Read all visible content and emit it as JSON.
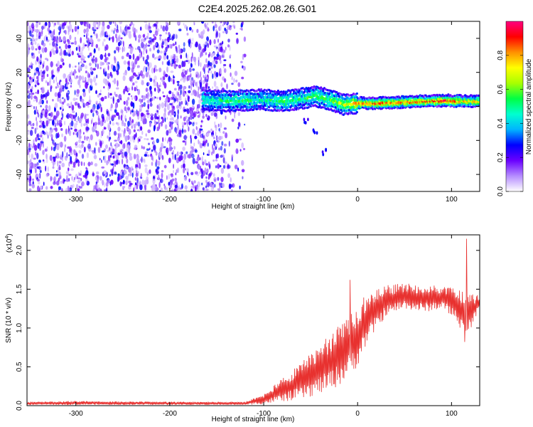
{
  "title": "C2E4.2025.262.08.26.G01",
  "chart_data": [
    {
      "type": "heatmap",
      "title": "",
      "xlabel": "Height of straight line (km)",
      "ylabel": "Frequency (Hz)",
      "xlim": [
        -352,
        130
      ],
      "ylim": [
        -50,
        50
      ],
      "xticks": [
        -300,
        -200,
        -100,
        0,
        100
      ],
      "yticks": [
        -40,
        -20,
        0,
        20,
        40
      ],
      "xtick_labels": [
        "-300",
        "-200",
        "-100",
        "0",
        "100"
      ],
      "ytick_labels": [
        "-40",
        "-20",
        "0",
        "20",
        "40"
      ],
      "colorbar": {
        "label": "Normalized spectral amplitude",
        "range": [
          0,
          1
        ],
        "ticks": [
          "0.0",
          "0.2",
          "0.4",
          "0.6",
          "0.8"
        ],
        "colors": [
          "#ffffff",
          "#b58cff",
          "#6a00ff",
          "#0000ff",
          "#00b4ff",
          "#00ffd0",
          "#00ff44",
          "#a8ff00",
          "#ffff00",
          "#ff9000",
          "#ff0000",
          "#ff0080"
        ]
      },
      "noise_region_x": [
        -352,
        -140
      ],
      "signal_ridge": [
        {
          "x": -165,
          "y": 4,
          "amp": 0.45
        },
        {
          "x": -140,
          "y": 3,
          "amp": 0.5
        },
        {
          "x": -120,
          "y": 3.5,
          "amp": 0.5
        },
        {
          "x": -100,
          "y": 4,
          "amp": 0.45
        },
        {
          "x": -80,
          "y": 3,
          "amp": 0.55
        },
        {
          "x": -60,
          "y": 4.5,
          "amp": 0.5
        },
        {
          "x": -45,
          "y": 6,
          "amp": 0.55
        },
        {
          "x": -30,
          "y": 4,
          "amp": 0.55
        },
        {
          "x": -15,
          "y": 1,
          "amp": 0.65
        },
        {
          "x": 0,
          "y": 2,
          "amp": 0.8
        },
        {
          "x": 20,
          "y": 2,
          "amp": 0.85
        },
        {
          "x": 45,
          "y": 2.5,
          "amp": 0.8
        },
        {
          "x": 70,
          "y": 3,
          "amp": 0.85
        },
        {
          "x": 95,
          "y": 3.5,
          "amp": 0.9
        },
        {
          "x": 115,
          "y": 3,
          "amp": 0.75
        },
        {
          "x": 130,
          "y": 3,
          "amp": 0.7
        }
      ],
      "side_branch": [
        {
          "x": -55,
          "y": -8
        },
        {
          "x": -45,
          "y": -15
        },
        {
          "x": -35,
          "y": -27
        }
      ]
    },
    {
      "type": "line",
      "title": "",
      "xlabel": "Height of straight line (km)",
      "ylabel": "SNR (10 * v/v)",
      "scale_label": "(x10",
      "scale_exponent": "4",
      "scale_close": ")",
      "xlim": [
        -352,
        130
      ],
      "ylim": [
        0,
        2.2
      ],
      "xticks": [
        -300,
        -200,
        -100,
        0,
        100
      ],
      "yticks": [
        0,
        0.5,
        1,
        1.5,
        2
      ],
      "xtick_labels": [
        "-300",
        "-200",
        "-100",
        "0",
        "100"
      ],
      "ytick_labels": [
        "0.0",
        "0.5",
        "1.0",
        "1.5",
        "2.0"
      ],
      "color": "#e8312f",
      "envelope": [
        {
          "x": -352,
          "lo": 0.01,
          "hi": 0.05
        },
        {
          "x": -300,
          "lo": 0.01,
          "hi": 0.06
        },
        {
          "x": -200,
          "lo": 0.01,
          "hi": 0.05
        },
        {
          "x": -120,
          "lo": 0.01,
          "hi": 0.05
        },
        {
          "x": -100,
          "lo": 0.02,
          "hi": 0.15
        },
        {
          "x": -80,
          "lo": 0.05,
          "hi": 0.35
        },
        {
          "x": -60,
          "lo": 0.08,
          "hi": 0.55
        },
        {
          "x": -40,
          "lo": 0.15,
          "hi": 0.8
        },
        {
          "x": -20,
          "lo": 0.25,
          "hi": 1.05
        },
        {
          "x": 0,
          "lo": 0.5,
          "hi": 1.3
        },
        {
          "x": 10,
          "lo": 0.8,
          "hi": 1.45
        },
        {
          "x": 30,
          "lo": 1.15,
          "hi": 1.55
        },
        {
          "x": 50,
          "lo": 1.25,
          "hi": 1.58
        },
        {
          "x": 70,
          "lo": 1.2,
          "hi": 1.55
        },
        {
          "x": 90,
          "lo": 1.25,
          "hi": 1.55
        },
        {
          "x": 105,
          "lo": 1.1,
          "hi": 1.5
        },
        {
          "x": 115,
          "lo": 0.85,
          "hi": 1.45
        },
        {
          "x": 130,
          "lo": 1.25,
          "hi": 1.42
        }
      ],
      "spikes": [
        {
          "x": -8,
          "y": 1.62
        },
        {
          "x": 116,
          "y": 2.15
        },
        {
          "x": 114,
          "y": 0.82
        }
      ]
    }
  ]
}
